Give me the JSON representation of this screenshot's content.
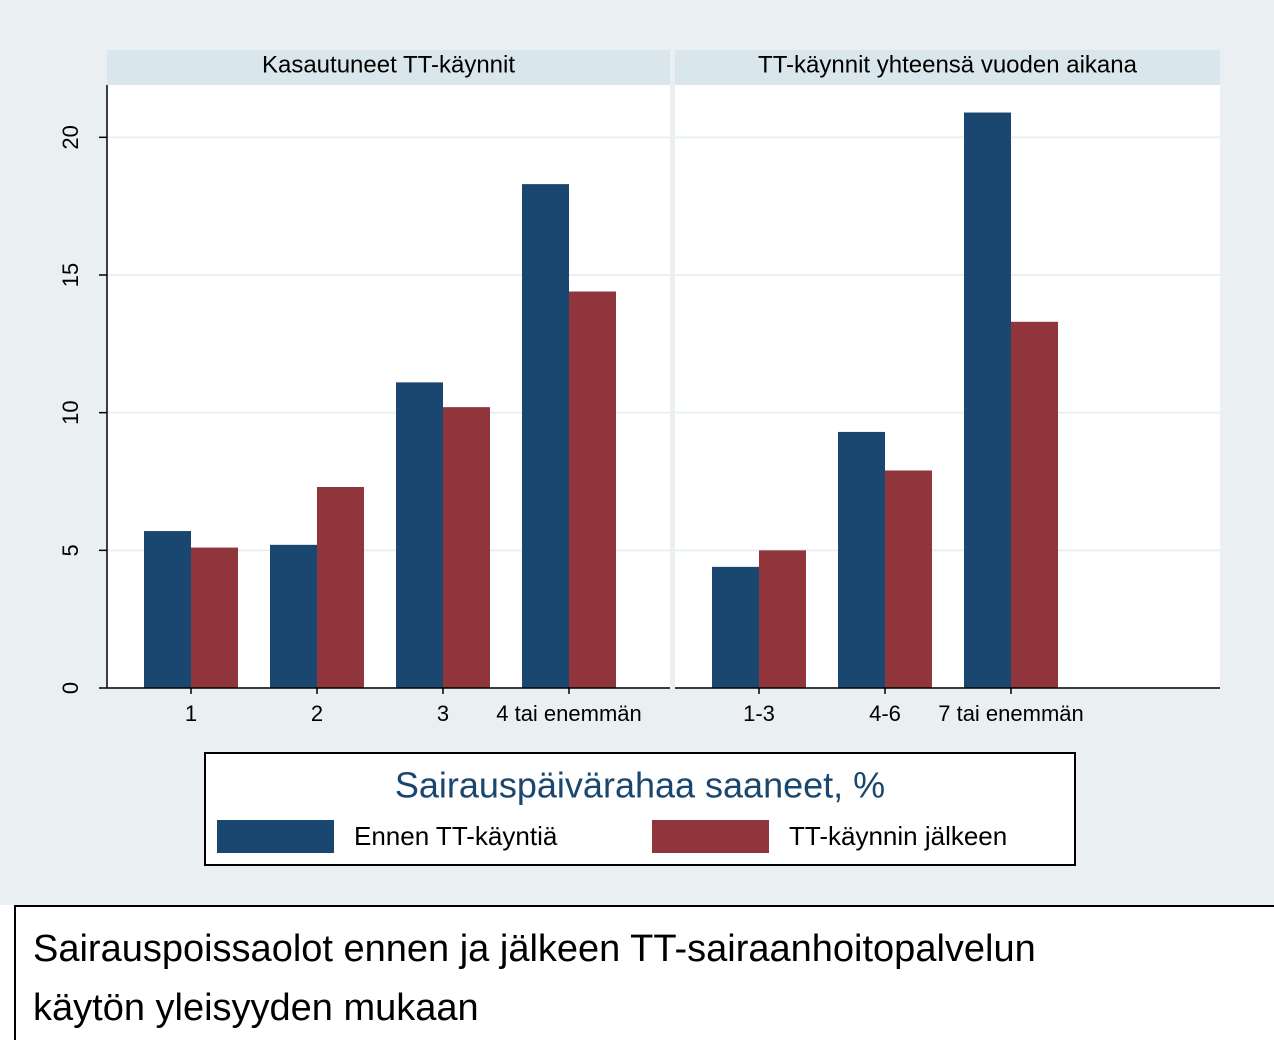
{
  "chart_data": [
    {
      "type": "bar",
      "title": "Kasautuneet TT-käynnit",
      "categories": [
        "1",
        "2",
        "3",
        "4 tai enemmän"
      ],
      "series": [
        {
          "name": "Ennen TT-käyntiä",
          "color": "#1a476f",
          "values": [
            5.7,
            5.2,
            11.1,
            18.3
          ]
        },
        {
          "name": "TT-käynnin jälkeen",
          "color": "#90353b",
          "values": [
            5.1,
            7.3,
            10.2,
            14.4
          ]
        }
      ],
      "ylim": [
        0,
        21.9
      ],
      "yticks": [
        0,
        5,
        10,
        15,
        20
      ],
      "grid": true
    },
    {
      "type": "bar",
      "title": "TT-käynnit yhteensä vuoden aikana",
      "categories": [
        "1-3",
        "4-6",
        "7 tai enemmän"
      ],
      "series": [
        {
          "color": "#1a476f",
          "values": [
            4.4,
            9.3,
            20.9
          ]
        },
        {
          "color": "#90353b",
          "values": [
            5.0,
            7.9,
            13.3
          ]
        }
      ],
      "ylim": [
        0,
        21.9
      ],
      "yticks": [
        0,
        5,
        10,
        15,
        20
      ],
      "grid": true
    }
  ],
  "legend": {
    "title": "Sairauspäivärahaa saaneet, %"
  },
  "caption": [
    "Sairauspoissaolot ennen ja jälkeen TT-sairaanhoitopalvelun",
    "käytön yleisyyden mukaan"
  ]
}
